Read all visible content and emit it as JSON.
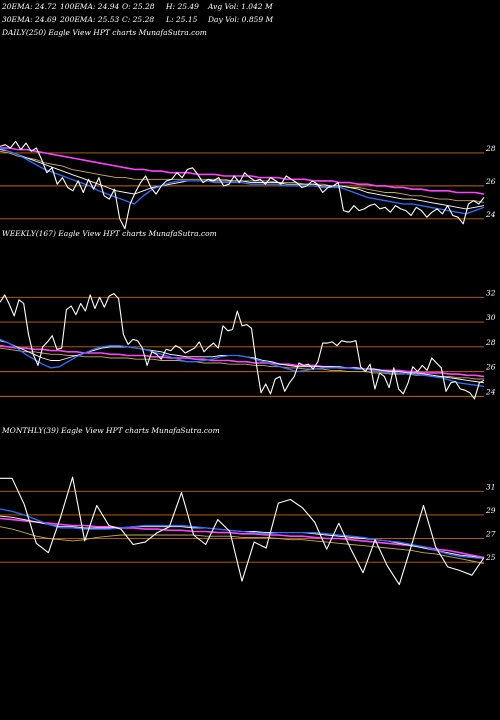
{
  "header": {
    "row1": [
      "20EMA: 24.72",
      "100EMA: 24.94",
      "O: 25.28",
      "H: 25.49",
      "Avg Vol: 1.042  M"
    ],
    "row2": [
      "30EMA: 24.69",
      "200EMA: 25.53",
      "C: 25.28",
      "L: 25.15",
      "Day Vol: 0.859 M"
    ]
  },
  "colors": {
    "background": "#000000",
    "price": "#ffffff",
    "ema20": "#2f6fff",
    "ema30": "#ffffff",
    "ema100": "#c8a860",
    "ema200": "#ff44ff",
    "level_lines": "#c06a10"
  },
  "chart_data": [
    {
      "type": "line",
      "title": "DAILY(250) Eagle  View  HPT charts MunafaSutra.com",
      "ylim": [
        23.2,
        30.0
      ],
      "yticks": [
        28,
        26,
        24
      ],
      "hlines": [
        28,
        26,
        24
      ],
      "series": [
        {
          "key": "price",
          "values": [
            28.4,
            28.5,
            28.3,
            28.7,
            28.2,
            28.6,
            28.1,
            28.3,
            27.6,
            26.8,
            27.1,
            26.1,
            26.5,
            25.9,
            25.7,
            26.3,
            25.6,
            26.4,
            25.8,
            26.5,
            25.4,
            25.2,
            25.8,
            24.0,
            23.4,
            24.9,
            25.6,
            26.2,
            26.6,
            25.9,
            25.5,
            26.0,
            26.3,
            26.4,
            26.8,
            26.5,
            27.0,
            27.1,
            26.7,
            26.2,
            26.4,
            26.3,
            26.5,
            26.0,
            26.1,
            26.6,
            26.2,
            26.8,
            26.5,
            26.3,
            26.4,
            26.1,
            26.5,
            26.3,
            26.1,
            26.6,
            26.4,
            26.2,
            25.9,
            26.0,
            26.3,
            26.1,
            25.6,
            25.9,
            26.0,
            26.2,
            24.5,
            24.4,
            24.8,
            24.5,
            24.6,
            24.8,
            24.9,
            24.6,
            24.7,
            24.4,
            24.8,
            24.6,
            24.5,
            24.2,
            24.7,
            24.5,
            24.1,
            24.4,
            24.6,
            24.3,
            24.8,
            24.2,
            24.1,
            23.7,
            24.9,
            25.1,
            24.9,
            25.3
          ]
        },
        {
          "key": "ema20",
          "values": [
            28.3,
            28.1,
            27.9,
            27.6,
            27.3,
            27.0,
            26.8,
            26.6,
            26.4,
            26.2,
            26.0,
            25.7,
            25.5,
            25.3,
            25.1,
            24.9,
            25.4,
            25.8,
            26.0,
            26.2,
            26.3,
            26.3,
            26.3,
            26.3,
            26.2,
            26.2,
            26.2,
            26.2,
            26.1,
            26.1,
            26.1,
            26.1,
            26.0,
            26.0,
            26.0,
            26.0,
            25.9,
            25.9,
            25.9,
            25.7,
            25.5,
            25.3,
            25.2,
            25.1,
            25.0,
            24.9,
            24.9,
            24.8,
            24.7,
            24.6,
            24.5,
            24.4,
            24.3,
            24.5,
            24.7
          ]
        },
        {
          "key": "ema30",
          "values": [
            28.2,
            28.1,
            27.9,
            27.7,
            27.5,
            27.3,
            27.1,
            26.9,
            26.7,
            26.5,
            26.3,
            26.1,
            25.9,
            25.7,
            25.6,
            25.5,
            25.7,
            25.9,
            26.0,
            26.1,
            26.2,
            26.3,
            26.3,
            26.3,
            26.3,
            26.3,
            26.3,
            26.3,
            26.2,
            26.2,
            26.2,
            26.2,
            26.1,
            26.1,
            26.1,
            26.1,
            26.0,
            26.0,
            26.0,
            25.9,
            25.8,
            25.6,
            25.5,
            25.4,
            25.3,
            25.2,
            25.2,
            25.1,
            25.0,
            24.9,
            24.8,
            24.7,
            24.6,
            24.7,
            24.8
          ]
        },
        {
          "key": "ema100",
          "values": [
            28.1,
            28.0,
            27.8,
            27.7,
            27.6,
            27.4,
            27.3,
            27.2,
            27.0,
            26.9,
            26.8,
            26.7,
            26.6,
            26.5,
            26.5,
            26.4,
            26.4,
            26.4,
            26.4,
            26.4,
            26.4,
            26.4,
            26.4,
            26.4,
            26.4,
            26.4,
            26.3,
            26.3,
            26.3,
            26.3,
            26.3,
            26.2,
            26.2,
            26.2,
            26.1,
            26.1,
            26.1,
            26.0,
            26.0,
            25.9,
            25.9,
            25.8,
            25.7,
            25.6,
            25.6,
            25.5,
            25.4,
            25.4,
            25.3,
            25.2,
            25.2,
            25.1,
            25.1,
            25.1,
            25.0
          ]
        },
        {
          "key": "ema200",
          "values": [
            28.3,
            28.3,
            28.2,
            28.2,
            28.1,
            28.0,
            27.9,
            27.8,
            27.7,
            27.6,
            27.5,
            27.4,
            27.3,
            27.2,
            27.1,
            27.0,
            27.0,
            26.9,
            26.9,
            26.8,
            26.8,
            26.8,
            26.7,
            26.7,
            26.7,
            26.6,
            26.6,
            26.6,
            26.6,
            26.5,
            26.5,
            26.5,
            26.4,
            26.4,
            26.4,
            26.3,
            26.3,
            26.3,
            26.2,
            26.2,
            26.1,
            26.1,
            26.0,
            26.0,
            25.9,
            25.9,
            25.8,
            25.8,
            25.7,
            25.7,
            25.7,
            25.6,
            25.6,
            25.6,
            25.5
          ]
        }
      ]
    },
    {
      "type": "line",
      "title": "WEEKLY(167) Eagle  View  HPT charts MunafaSutra.com",
      "ylim": [
        22.9,
        33.4
      ],
      "yticks": [
        32,
        30,
        28,
        26,
        24
      ],
      "hlines": [
        32,
        30,
        28,
        26,
        24
      ],
      "series": [
        {
          "key": "price",
          "values": [
            31.6,
            32.2,
            31.4,
            30.5,
            31.8,
            31.5,
            29.0,
            27.4,
            26.5,
            28.0,
            28.4,
            28.9,
            27.8,
            27.9,
            31.0,
            31.3,
            30.6,
            31.5,
            30.9,
            32.2,
            31.1,
            32.0,
            31.2,
            32.1,
            32.3,
            31.9,
            29.0,
            28.2,
            28.6,
            28.5,
            27.9,
            26.5,
            27.6,
            27.4,
            27.0,
            27.8,
            27.7,
            28.1,
            27.9,
            27.5,
            27.7,
            27.9,
            28.4,
            27.6,
            28.0,
            28.3,
            27.9,
            29.7,
            29.3,
            29.4,
            30.9,
            29.7,
            29.8,
            29.5,
            26.7,
            24.3,
            25.0,
            24.2,
            25.4,
            25.6,
            24.4,
            25.1,
            25.6,
            26.7,
            26.5,
            26.6,
            26.2,
            26.8,
            28.3,
            28.3,
            28.4,
            28.1,
            28.5,
            28.4,
            28.4,
            28.5,
            26.4,
            26.0,
            26.6,
            24.6,
            25.9,
            25.6,
            24.7,
            26.3,
            24.6,
            24.2,
            25.1,
            26.4,
            26.0,
            26.5,
            26.1,
            27.1,
            26.7,
            26.3,
            24.4,
            25.1,
            25.2,
            24.6,
            24.5,
            24.3,
            23.8,
            25.1,
            25.3
          ]
        },
        {
          "key": "ema20",
          "values": [
            28.6,
            28.3,
            27.9,
            27.4,
            27.0,
            26.6,
            26.3,
            26.4,
            26.8,
            27.2,
            27.5,
            27.8,
            28.0,
            28.1,
            28.1,
            28.0,
            27.9,
            27.8,
            27.6,
            27.4,
            27.2,
            27.0,
            26.8,
            26.8,
            26.9,
            27.0,
            27.2,
            27.3,
            27.3,
            27.2,
            27.0,
            26.8,
            26.6,
            26.4,
            26.2,
            26.0,
            26.1,
            26.2,
            26.3,
            26.3,
            26.3,
            26.3,
            26.2,
            26.2,
            26.1,
            26.0,
            25.9,
            25.9,
            25.8,
            25.8,
            25.7,
            25.6,
            25.5,
            25.3,
            25.1,
            25.0,
            24.9,
            24.8
          ]
        },
        {
          "key": "ema30",
          "values": [
            28.5,
            28.3,
            28.0,
            27.7,
            27.4,
            27.1,
            26.9,
            26.9,
            27.1,
            27.3,
            27.5,
            27.7,
            27.9,
            28.0,
            28.0,
            28.0,
            27.9,
            27.8,
            27.7,
            27.6,
            27.4,
            27.3,
            27.2,
            27.2,
            27.2,
            27.2,
            27.3,
            27.3,
            27.3,
            27.2,
            27.1,
            26.9,
            26.8,
            26.6,
            26.5,
            26.4,
            26.4,
            26.4,
            26.4,
            26.4,
            26.4,
            26.3,
            26.3,
            26.2,
            26.2,
            26.1,
            26.0,
            26.0,
            25.9,
            25.9,
            25.8,
            25.7,
            25.6,
            25.5,
            25.4,
            25.3,
            25.2,
            25.1
          ]
        },
        {
          "key": "ema100",
          "values": [
            27.9,
            27.8,
            27.7,
            27.6,
            27.6,
            27.5,
            27.4,
            27.4,
            27.3,
            27.3,
            27.2,
            27.2,
            27.2,
            27.1,
            27.1,
            27.1,
            27.0,
            27.0,
            27.0,
            26.9,
            26.9,
            26.9,
            26.8,
            26.8,
            26.7,
            26.7,
            26.7,
            26.6,
            26.6,
            26.6,
            26.5,
            26.5,
            26.4,
            26.4,
            26.3,
            26.3,
            26.2,
            26.2,
            26.2,
            26.1,
            26.1,
            26.0,
            26.0,
            26.0,
            25.9,
            25.9,
            25.8,
            25.8,
            25.8,
            25.7,
            25.7,
            25.6,
            25.6,
            25.6,
            25.5,
            25.5,
            25.4,
            25.4
          ]
        },
        {
          "key": "ema200",
          "values": [
            28.1,
            28.0,
            27.9,
            27.9,
            27.8,
            27.8,
            27.7,
            27.7,
            27.6,
            27.6,
            27.5,
            27.5,
            27.5,
            27.4,
            27.4,
            27.3,
            27.3,
            27.3,
            27.2,
            27.2,
            27.1,
            27.1,
            27.1,
            27.0,
            27.0,
            26.9,
            26.9,
            26.9,
            26.8,
            26.8,
            26.7,
            26.7,
            26.7,
            26.6,
            26.6,
            26.5,
            26.5,
            26.5,
            26.4,
            26.4,
            26.3,
            26.3,
            26.3,
            26.2,
            26.2,
            26.1,
            26.1,
            26.1,
            26.0,
            26.0,
            25.9,
            25.9,
            25.9,
            25.8,
            25.8,
            25.7,
            25.7,
            25.6
          ]
        }
      ]
    },
    {
      "type": "line",
      "title": "MONTHLY(39) Eagle  View  HPT charts MunafaSutra.com",
      "ylim": [
        21.8,
        32.8
      ],
      "yticks": [
        31,
        29,
        27,
        25
      ],
      "hlines": [
        31,
        29,
        27,
        25
      ],
      "series": [
        {
          "key": "price",
          "values": [
            32.1,
            32.1,
            29.9,
            26.6,
            25.8,
            28.8,
            32.2,
            26.8,
            29.8,
            28.1,
            27.8,
            26.5,
            26.7,
            27.5,
            28.0,
            30.9,
            27.3,
            26.5,
            28.6,
            27.6,
            23.4,
            26.7,
            26.2,
            30.0,
            30.3,
            29.6,
            28.4,
            26.1,
            28.3,
            26.1,
            24.1,
            26.9,
            24.7,
            23.1,
            26.4,
            29.8,
            26.3,
            24.6,
            24.3,
            23.9,
            25.4
          ]
        },
        {
          "key": "ema20",
          "values": [
            29.5,
            29.3,
            29.0,
            28.6,
            28.2,
            27.9,
            27.9,
            27.8,
            27.8,
            27.8,
            27.9,
            28.0,
            28.1,
            28.1,
            28.1,
            28.1,
            28.0,
            27.9,
            27.8,
            27.7,
            27.6,
            27.5,
            27.4,
            27.5,
            27.5,
            27.5,
            27.5,
            27.4,
            27.3,
            27.2,
            27.1,
            26.9,
            26.8,
            26.7,
            26.5,
            26.3,
            26.0,
            25.7,
            25.5,
            25.4,
            25.3
          ]
        },
        {
          "key": "ema30",
          "values": [
            28.9,
            28.8,
            28.6,
            28.4,
            28.2,
            28.0,
            28.0,
            27.9,
            27.9,
            27.9,
            27.9,
            28.0,
            28.0,
            28.0,
            28.0,
            28.0,
            27.9,
            27.9,
            27.8,
            27.7,
            27.6,
            27.6,
            27.5,
            27.5,
            27.5,
            27.5,
            27.4,
            27.3,
            27.2,
            27.1,
            27.0,
            26.9,
            26.8,
            26.6,
            26.4,
            26.2,
            26.0,
            25.8,
            25.6,
            25.5,
            25.3
          ]
        },
        {
          "key": "ema100",
          "values": [
            28.0,
            27.8,
            27.5,
            27.2,
            27.0,
            26.9,
            26.8,
            26.9,
            27.1,
            27.2,
            27.3,
            27.3,
            27.3,
            27.3,
            27.3,
            27.3,
            27.3,
            27.2,
            27.2,
            27.2,
            27.1,
            27.1,
            27.1,
            27.0,
            26.9,
            26.9,
            26.8,
            26.7,
            26.6,
            26.5,
            26.4,
            26.3,
            26.2,
            26.1,
            26.0,
            25.8,
            25.7,
            25.5,
            25.3,
            25.1,
            24.9
          ]
        },
        {
          "key": "ema200",
          "values": [
            28.7,
            28.6,
            28.5,
            28.4,
            28.3,
            28.2,
            28.1,
            28.1,
            28.0,
            28.0,
            27.9,
            27.9,
            27.8,
            27.8,
            27.7,
            27.7,
            27.6,
            27.6,
            27.5,
            27.5,
            27.4,
            27.4,
            27.3,
            27.3,
            27.2,
            27.2,
            27.1,
            27.0,
            27.0,
            26.9,
            26.8,
            26.7,
            26.6,
            26.5,
            26.4,
            26.3,
            26.1,
            26.0,
            25.8,
            25.6,
            25.4
          ]
        }
      ]
    }
  ]
}
